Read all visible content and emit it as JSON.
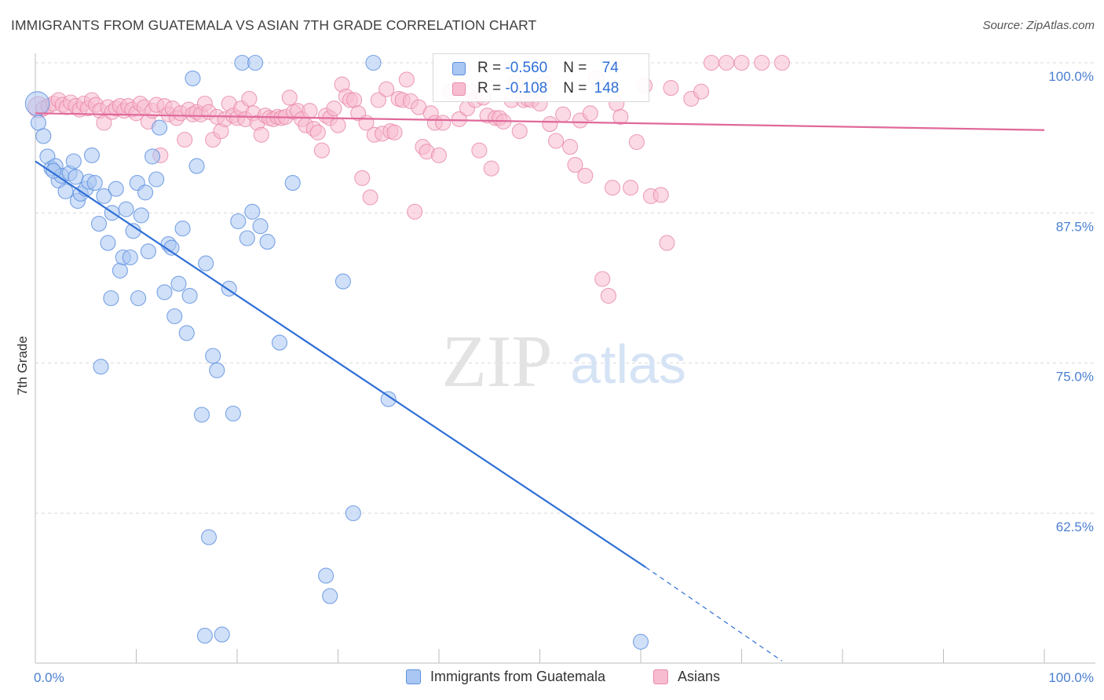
{
  "header": {
    "title": "IMMIGRANTS FROM GUATEMALA VS ASIAN 7TH GRADE CORRELATION CHART",
    "source": "Source: ZipAtlas.com"
  },
  "watermark": {
    "zip": "ZIP",
    "atlas": "atlas"
  },
  "legend": {
    "rows": [
      {
        "r_label": "R = ",
        "r_value": "-0.560",
        "n_label": "N = ",
        "n_value": "74",
        "color": "#a9c7f2",
        "edge": "#5b8ee0"
      },
      {
        "r_label": "R = ",
        "r_value": "-0.108",
        "n_label": "N = ",
        "n_value": "148",
        "color": "#f8bcd0",
        "edge": "#e98aa9"
      }
    ]
  },
  "bottom_legend": {
    "items": [
      {
        "label": "Immigrants from Guatemala",
        "color": "#a9c7f2",
        "edge": "#5b8ee0"
      },
      {
        "label": "Asians",
        "color": "#f8bcd0",
        "edge": "#e98aa9"
      }
    ]
  },
  "chart_data": {
    "type": "scatter",
    "title": "IMMIGRANTS FROM GUATEMALA VS ASIAN 7TH GRADE CORRELATION CHART",
    "xlabel": "",
    "ylabel": "7th Grade",
    "xlim": [
      0,
      100
    ],
    "ylim": [
      51,
      102
    ],
    "y_ticks": [
      62.5,
      75.0,
      87.5,
      100.0
    ],
    "y_tick_labels": [
      "62.5%",
      "75.0%",
      "87.5%",
      "100.0%"
    ],
    "x_tick_labels": [
      "0.0%",
      "100.0%"
    ],
    "grid": "horizontal dashed",
    "legend_position": "top-center",
    "series": [
      {
        "name": "Immigrants from Guatemala",
        "color": "#5b8ee0",
        "fill": "#a9c7f2",
        "trend": {
          "x0": 0,
          "y0": 91.8,
          "x1": 60.5,
          "y1": 58.0,
          "dash_to_x": 74,
          "dash_to_y": 50.2
        },
        "points": [
          [
            0.2,
            96.6,
            1.6
          ],
          [
            0.3,
            95.0,
            1
          ],
          [
            0.8,
            93.9,
            1
          ],
          [
            1.2,
            92.2,
            1
          ],
          [
            1.6,
            91.2,
            1
          ],
          [
            2.0,
            91.4,
            1
          ],
          [
            2.3,
            90.2,
            1
          ],
          [
            2.6,
            90.6,
            1
          ],
          [
            3.0,
            89.3,
            1
          ],
          [
            3.4,
            90.8,
            1
          ],
          [
            3.8,
            91.8,
            1
          ],
          [
            4.2,
            88.5,
            1
          ],
          [
            4.5,
            89.1,
            1
          ],
          [
            5.0,
            89.5,
            1
          ],
          [
            5.3,
            90.1,
            1
          ],
          [
            5.6,
            92.3,
            1
          ],
          [
            5.9,
            90.0,
            1
          ],
          [
            6.3,
            86.6,
            1
          ],
          [
            6.8,
            88.9,
            1
          ],
          [
            7.2,
            85.0,
            1
          ],
          [
            7.6,
            87.5,
            1
          ],
          [
            8.0,
            89.5,
            1
          ],
          [
            8.4,
            82.7,
            1
          ],
          [
            8.7,
            83.8,
            1
          ],
          [
            9.0,
            87.8,
            1
          ],
          [
            9.4,
            83.8,
            1
          ],
          [
            9.7,
            86.0,
            1
          ],
          [
            10.1,
            90.0,
            1
          ],
          [
            10.5,
            87.3,
            1
          ],
          [
            10.9,
            89.2,
            1
          ],
          [
            11.2,
            84.3,
            1
          ],
          [
            11.6,
            92.2,
            1
          ],
          [
            12.0,
            90.3,
            1
          ],
          [
            12.3,
            94.6,
            1
          ],
          [
            12.8,
            80.9,
            1
          ],
          [
            13.2,
            84.9,
            1
          ],
          [
            13.5,
            84.6,
            1
          ],
          [
            13.8,
            78.9,
            1
          ],
          [
            14.2,
            81.6,
            1
          ],
          [
            14.6,
            86.2,
            1
          ],
          [
            15.0,
            77.5,
            1
          ],
          [
            15.3,
            80.6,
            1
          ],
          [
            15.6,
            98.7,
            1
          ],
          [
            16.0,
            91.4,
            1
          ],
          [
            16.5,
            70.7,
            1
          ],
          [
            16.9,
            83.3,
            1
          ],
          [
            17.2,
            60.5,
            1
          ],
          [
            17.6,
            75.6,
            1
          ],
          [
            18.0,
            74.4,
            1
          ],
          [
            18.5,
            52.4,
            1
          ],
          [
            19.2,
            81.2,
            1
          ],
          [
            19.6,
            70.8,
            1
          ],
          [
            20.1,
            86.8,
            1
          ],
          [
            20.5,
            100.0,
            1
          ],
          [
            21.0,
            85.4,
            1
          ],
          [
            21.5,
            87.6,
            1
          ],
          [
            21.8,
            100.0,
            1
          ],
          [
            22.3,
            86.4,
            1
          ],
          [
            23.0,
            85.1,
            1
          ],
          [
            24.2,
            76.7,
            1
          ],
          [
            25.5,
            90.0,
            1
          ],
          [
            7.5,
            80.4,
            1
          ],
          [
            10.2,
            80.4,
            1
          ],
          [
            6.5,
            74.7,
            1
          ],
          [
            28.8,
            57.3,
            1
          ],
          [
            29.2,
            55.6,
            1
          ],
          [
            30.5,
            81.8,
            1
          ],
          [
            31.5,
            62.5,
            1
          ],
          [
            33.5,
            100.0,
            1
          ],
          [
            35.0,
            72.0,
            1
          ],
          [
            60.0,
            51.8,
            1
          ],
          [
            16.8,
            52.3,
            1
          ],
          [
            4.0,
            90.5,
            1
          ],
          [
            1.8,
            91.0,
            1
          ]
        ]
      },
      {
        "name": "Asians",
        "color": "#e98aa9",
        "fill": "#f8bcd0",
        "trend": {
          "x0": 0,
          "y0": 95.8,
          "x1": 100,
          "y1": 94.4
        },
        "points": [
          [
            0.3,
            96.3,
            1.4
          ],
          [
            0.8,
            96.2,
            1
          ],
          [
            1.3,
            96.4,
            1
          ],
          [
            1.8,
            96.6,
            1
          ],
          [
            2.3,
            96.9,
            1
          ],
          [
            2.7,
            96.5,
            1
          ],
          [
            3.1,
            96.3,
            1
          ],
          [
            3.5,
            96.7,
            1
          ],
          [
            4.0,
            96.4,
            1
          ],
          [
            4.4,
            96.1,
            1
          ],
          [
            4.8,
            96.6,
            1
          ],
          [
            5.2,
            96.2,
            1
          ],
          [
            5.6,
            96.9,
            1
          ],
          [
            6.0,
            96.5,
            1
          ],
          [
            6.4,
            96.0,
            1
          ],
          [
            6.8,
            95.0,
            1
          ],
          [
            7.2,
            96.3,
            1
          ],
          [
            7.6,
            95.9,
            1
          ],
          [
            8.0,
            96.2,
            1
          ],
          [
            8.4,
            96.4,
            1
          ],
          [
            8.8,
            96.0,
            1
          ],
          [
            9.2,
            96.4,
            1
          ],
          [
            9.6,
            96.1,
            1
          ],
          [
            10.0,
            95.8,
            1
          ],
          [
            10.4,
            96.6,
            1
          ],
          [
            10.8,
            96.3,
            1
          ],
          [
            11.2,
            95.1,
            1
          ],
          [
            11.6,
            96.0,
            1
          ],
          [
            12.0,
            96.5,
            1
          ],
          [
            12.4,
            92.3,
            1
          ],
          [
            12.8,
            96.4,
            1
          ],
          [
            13.2,
            95.7,
            1
          ],
          [
            13.6,
            96.2,
            1
          ],
          [
            14.0,
            95.4,
            1
          ],
          [
            14.4,
            95.8,
            1
          ],
          [
            14.8,
            93.6,
            1
          ],
          [
            15.2,
            96.1,
            1
          ],
          [
            15.6,
            95.7,
            1
          ],
          [
            16.0,
            95.9,
            1
          ],
          [
            16.4,
            95.7,
            1
          ],
          [
            16.8,
            96.6,
            1
          ],
          [
            17.2,
            95.9,
            1
          ],
          [
            17.6,
            93.6,
            1
          ],
          [
            18.0,
            95.5,
            1
          ],
          [
            18.4,
            94.3,
            1
          ],
          [
            18.8,
            95.3,
            1
          ],
          [
            19.2,
            96.6,
            1
          ],
          [
            19.6,
            95.6,
            1
          ],
          [
            20.0,
            95.4,
            1
          ],
          [
            20.4,
            96.2,
            1
          ],
          [
            20.8,
            95.3,
            1
          ],
          [
            21.2,
            97.0,
            1
          ],
          [
            21.6,
            95.8,
            1
          ],
          [
            22.0,
            95.0,
            1
          ],
          [
            22.4,
            94.0,
            1
          ],
          [
            22.8,
            95.6,
            1
          ],
          [
            23.2,
            95.4,
            1
          ],
          [
            23.6,
            95.3,
            1
          ],
          [
            24.0,
            95.5,
            1
          ],
          [
            24.4,
            95.4,
            1
          ],
          [
            24.8,
            95.5,
            1
          ],
          [
            25.2,
            97.1,
            1
          ],
          [
            25.6,
            95.9,
            1
          ],
          [
            26.0,
            96.0,
            1
          ],
          [
            26.4,
            95.3,
            1
          ],
          [
            26.8,
            94.8,
            1
          ],
          [
            27.2,
            96.0,
            1
          ],
          [
            27.6,
            94.5,
            1
          ],
          [
            28.0,
            94.2,
            1
          ],
          [
            28.4,
            92.7,
            1
          ],
          [
            28.8,
            95.6,
            1
          ],
          [
            29.2,
            95.4,
            1
          ],
          [
            29.6,
            96.2,
            1
          ],
          [
            30.0,
            94.8,
            1
          ],
          [
            30.4,
            98.2,
            1
          ],
          [
            30.8,
            97.2,
            1
          ],
          [
            31.2,
            96.9,
            1
          ],
          [
            31.6,
            96.9,
            1
          ],
          [
            32.0,
            95.8,
            1
          ],
          [
            32.4,
            90.4,
            1
          ],
          [
            32.8,
            95.0,
            1
          ],
          [
            33.2,
            88.8,
            1
          ],
          [
            33.6,
            94.0,
            1
          ],
          [
            34.0,
            96.9,
            1
          ],
          [
            34.4,
            94.1,
            1
          ],
          [
            34.8,
            97.8,
            1
          ],
          [
            35.2,
            94.3,
            1
          ],
          [
            35.6,
            94.2,
            1
          ],
          [
            36.0,
            97.0,
            1
          ],
          [
            36.4,
            96.9,
            1
          ],
          [
            36.8,
            98.6,
            1
          ],
          [
            37.2,
            96.8,
            1
          ],
          [
            37.6,
            87.6,
            1
          ],
          [
            38.0,
            96.3,
            1
          ],
          [
            38.4,
            93.0,
            1
          ],
          [
            38.8,
            92.6,
            1
          ],
          [
            39.2,
            95.8,
            1
          ],
          [
            39.6,
            95.0,
            1
          ],
          [
            40.0,
            92.3,
            1
          ],
          [
            40.4,
            95.0,
            1
          ],
          [
            41.2,
            97.6,
            1
          ],
          [
            42.0,
            95.3,
            1
          ],
          [
            42.8,
            96.2,
            1
          ],
          [
            43.2,
            97.6,
            1
          ],
          [
            43.6,
            96.9,
            1
          ],
          [
            44.0,
            92.7,
            1
          ],
          [
            44.4,
            97.1,
            1
          ],
          [
            44.8,
            95.6,
            1
          ],
          [
            45.2,
            91.2,
            1
          ],
          [
            45.6,
            95.4,
            1
          ],
          [
            46.0,
            95.4,
            1
          ],
          [
            46.4,
            95.1,
            1
          ],
          [
            47.2,
            96.9,
            1
          ],
          [
            47.6,
            98.3,
            1
          ],
          [
            48.0,
            94.3,
            1
          ],
          [
            48.4,
            96.9,
            1
          ],
          [
            48.8,
            97.0,
            1
          ],
          [
            49.2,
            96.9,
            1
          ],
          [
            50.0,
            96.6,
            1
          ],
          [
            50.4,
            98.3,
            1
          ],
          [
            51.0,
            94.9,
            1
          ],
          [
            51.6,
            93.5,
            1
          ],
          [
            52.3,
            95.7,
            1
          ],
          [
            53.0,
            93.0,
            1
          ],
          [
            53.5,
            91.5,
            1
          ],
          [
            54.0,
            95.2,
            1
          ],
          [
            54.5,
            90.6,
            1
          ],
          [
            55.0,
            95.8,
            1
          ],
          [
            55.6,
            98.7,
            1
          ],
          [
            56.2,
            82.0,
            1
          ],
          [
            56.8,
            80.6,
            1
          ],
          [
            57.2,
            89.6,
            1
          ],
          [
            57.6,
            96.6,
            1
          ],
          [
            58.0,
            95.5,
            1
          ],
          [
            59.0,
            89.6,
            1
          ],
          [
            59.6,
            93.4,
            1
          ],
          [
            60.4,
            98.1,
            1
          ],
          [
            61.0,
            88.9,
            1
          ],
          [
            62.0,
            89.0,
            1
          ],
          [
            62.6,
            85.0,
            1
          ],
          [
            63.0,
            97.9,
            1
          ],
          [
            65.0,
            97.0,
            1
          ],
          [
            66.0,
            97.6,
            1
          ],
          [
            67.0,
            100.0,
            1
          ],
          [
            68.5,
            100.0,
            1
          ],
          [
            70.0,
            100.0,
            1
          ],
          [
            72.0,
            100.0,
            1
          ],
          [
            74.0,
            100.0,
            1
          ]
        ]
      }
    ]
  }
}
